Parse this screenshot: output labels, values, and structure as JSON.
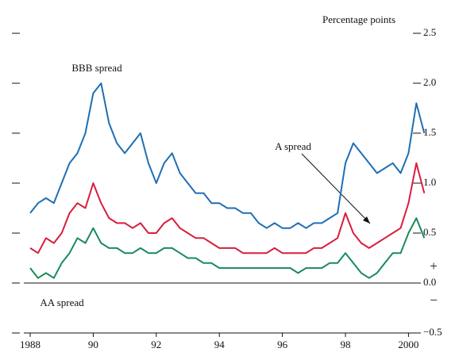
{
  "chart_data": {
    "type": "line",
    "y_axis_label": "Percentage points",
    "annotations": [
      "BBB spread",
      "A spread",
      "AA spread",
      "+",
      "−"
    ],
    "x": [
      1988,
      1988.25,
      1988.5,
      1988.75,
      1989,
      1989.25,
      1989.5,
      1989.75,
      1990,
      1990.25,
      1990.5,
      1990.75,
      1991,
      1991.25,
      1991.5,
      1991.75,
      1992,
      1992.25,
      1992.5,
      1992.75,
      1993,
      1993.25,
      1993.5,
      1993.75,
      1994,
      1994.25,
      1994.5,
      1994.75,
      1995,
      1995.25,
      1995.5,
      1995.75,
      1996,
      1996.25,
      1996.5,
      1996.75,
      1997,
      1997.25,
      1997.5,
      1997.75,
      1998,
      1998.25,
      1998.5,
      1998.75,
      1999,
      1999.25,
      1999.5,
      1999.75,
      2000,
      2000.25,
      2000.5
    ],
    "series": [
      {
        "name": "BBB spread",
        "color": "#1f6fb4",
        "values": [
          0.7,
          0.8,
          0.85,
          0.8,
          1.0,
          1.2,
          1.3,
          1.5,
          1.9,
          2.0,
          1.6,
          1.4,
          1.3,
          1.4,
          1.5,
          1.2,
          1.0,
          1.2,
          1.3,
          1.1,
          1.0,
          0.9,
          0.9,
          0.8,
          0.8,
          0.75,
          0.75,
          0.7,
          0.7,
          0.6,
          0.55,
          0.6,
          0.55,
          0.55,
          0.6,
          0.55,
          0.6,
          0.6,
          0.65,
          0.7,
          1.2,
          1.4,
          1.3,
          1.2,
          1.1,
          1.15,
          1.2,
          1.1,
          1.3,
          1.8,
          1.5
        ]
      },
      {
        "name": "A spread",
        "color": "#d81e3c",
        "values": [
          0.35,
          0.3,
          0.45,
          0.4,
          0.5,
          0.7,
          0.8,
          0.75,
          1.0,
          0.8,
          0.65,
          0.6,
          0.6,
          0.55,
          0.6,
          0.5,
          0.5,
          0.6,
          0.65,
          0.55,
          0.5,
          0.45,
          0.45,
          0.4,
          0.35,
          0.35,
          0.35,
          0.3,
          0.3,
          0.3,
          0.3,
          0.35,
          0.3,
          0.3,
          0.3,
          0.3,
          0.35,
          0.35,
          0.4,
          0.45,
          0.7,
          0.5,
          0.4,
          0.35,
          0.4,
          0.45,
          0.5,
          0.55,
          0.8,
          1.2,
          0.9
        ]
      },
      {
        "name": "AA spread",
        "color": "#1a8a5a",
        "values": [
          0.15,
          0.05,
          0.1,
          0.05,
          0.2,
          0.3,
          0.45,
          0.4,
          0.55,
          0.4,
          0.35,
          0.35,
          0.3,
          0.3,
          0.35,
          0.3,
          0.3,
          0.35,
          0.35,
          0.3,
          0.25,
          0.25,
          0.2,
          0.2,
          0.15,
          0.15,
          0.15,
          0.15,
          0.15,
          0.15,
          0.15,
          0.15,
          0.15,
          0.15,
          0.1,
          0.15,
          0.15,
          0.15,
          0.2,
          0.2,
          0.3,
          0.2,
          0.1,
          0.05,
          0.1,
          0.2,
          0.3,
          0.3,
          0.5,
          0.65,
          0.45
        ]
      }
    ],
    "xlim": [
      1988,
      2000.6
    ],
    "xticks": [
      {
        "value": 1988,
        "label": "1988"
      },
      {
        "value": 1990,
        "label": "90"
      },
      {
        "value": 1992,
        "label": "92"
      },
      {
        "value": 1994,
        "label": "94"
      },
      {
        "value": 1996,
        "label": "96"
      },
      {
        "value": 1998,
        "label": "98"
      },
      {
        "value": 2000,
        "label": "2000"
      }
    ],
    "ylim": [
      -0.5,
      2.5
    ],
    "yticks": [
      {
        "value": 2.5,
        "label": "2.5"
      },
      {
        "value": 2,
        "label": "2.0"
      },
      {
        "value": 1.5,
        "label": "1.5"
      },
      {
        "value": 1,
        "label": "1.0"
      },
      0.5,
      {
        "value": 0,
        "label": "0.0"
      },
      {
        "value": -0.5,
        "label": "−0.5"
      }
    ],
    "zero_line": true
  }
}
